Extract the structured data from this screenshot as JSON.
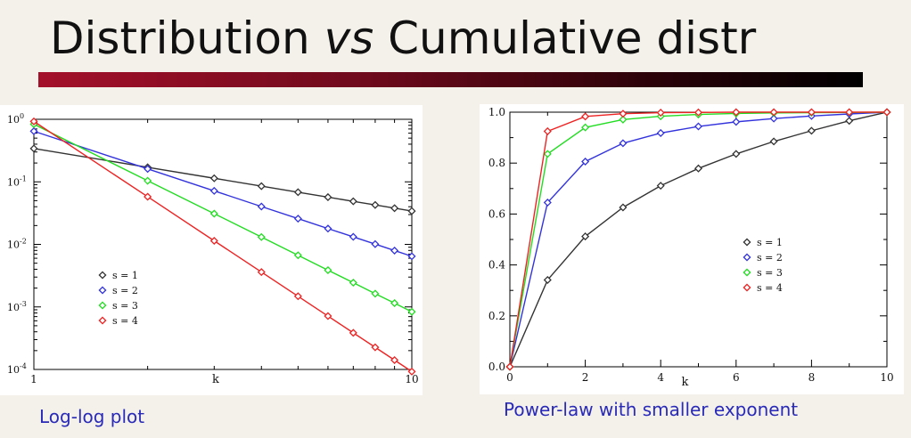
{
  "slide": {
    "title_part1": "Distribution ",
    "title_vs": "vs",
    "title_part2": " Cumulative distr",
    "caption_left": "Log-log plot",
    "caption_right": "Power-law with smaller exponent"
  },
  "chart_data": [
    {
      "type": "line",
      "xscale": "log",
      "yscale": "log",
      "xlabel": "k",
      "ylabel": "",
      "xlim": [
        1,
        10
      ],
      "ylim": [
        0.0001,
        1
      ],
      "x_ticks": [
        {
          "value": 1,
          "label": "1"
        },
        {
          "value": 10,
          "label": "10"
        }
      ],
      "y_ticks": [
        {
          "value": 1,
          "base": "10",
          "exp": "0"
        },
        {
          "value": 0.1,
          "base": "10",
          "exp": "-1"
        },
        {
          "value": 0.01,
          "base": "10",
          "exp": "-2"
        },
        {
          "value": 0.001,
          "base": "10",
          "exp": "-3"
        },
        {
          "value": 0.0001,
          "base": "10",
          "exp": "-4"
        }
      ],
      "legend_position": "lower-left",
      "grid": false,
      "x": [
        1,
        2,
        3,
        4,
        5,
        6,
        7,
        8,
        9,
        10
      ],
      "series": [
        {
          "name": "s = 1",
          "color": "#333333",
          "values": [
            0.341,
            0.171,
            0.114,
            0.0853,
            0.0683,
            0.0569,
            0.0488,
            0.0427,
            0.0379,
            0.0341
          ]
        },
        {
          "name": "s = 2",
          "color": "#3333dd",
          "values": [
            0.645,
            0.161,
            0.0717,
            0.0403,
            0.0258,
            0.0179,
            0.0132,
            0.0101,
            0.00796,
            0.00645
          ]
        },
        {
          "name": "s = 3",
          "color": "#22dd22",
          "values": [
            0.836,
            0.104,
            0.031,
            0.0131,
            0.00669,
            0.00387,
            0.00244,
            0.00163,
            0.00115,
            0.000836
          ]
        },
        {
          "name": "s = 4",
          "color": "#ee2222",
          "values": [
            0.925,
            0.0578,
            0.0114,
            0.00361,
            0.00148,
            0.000714,
            0.000385,
            0.000226,
            0.000141,
            9.25e-05
          ]
        }
      ]
    },
    {
      "type": "line",
      "xlabel": "k",
      "ylabel": "",
      "xlim": [
        0,
        10
      ],
      "ylim": [
        0,
        1
      ],
      "x_ticks": [
        "0",
        "2",
        "4",
        "6",
        "8",
        "10"
      ],
      "y_ticks": [
        "0.0",
        "0.2",
        "0.4",
        "0.6",
        "0.8",
        "1.0"
      ],
      "legend_position": "center-left",
      "grid": false,
      "x": [
        0,
        1,
        2,
        3,
        4,
        5,
        6,
        7,
        8,
        9,
        10
      ],
      "series": [
        {
          "name": "s = 1",
          "color": "#333333",
          "values": [
            0,
            0.341,
            0.512,
            0.626,
            0.711,
            0.779,
            0.836,
            0.885,
            0.927,
            0.966,
            1.0
          ]
        },
        {
          "name": "s = 2",
          "color": "#3333dd",
          "values": [
            0,
            0.645,
            0.806,
            0.878,
            0.918,
            0.944,
            0.962,
            0.975,
            0.985,
            0.993,
            1.0
          ]
        },
        {
          "name": "s = 3",
          "color": "#22dd22",
          "values": [
            0,
            0.836,
            0.94,
            0.971,
            0.984,
            0.991,
            0.995,
            0.997,
            0.998,
            0.999,
            1.0
          ]
        },
        {
          "name": "s = 4",
          "color": "#ee2222",
          "values": [
            0,
            0.925,
            0.983,
            0.994,
            0.998,
            0.999,
            1.0,
            1.0,
            1.0,
            1.0,
            1.0
          ]
        }
      ]
    }
  ]
}
